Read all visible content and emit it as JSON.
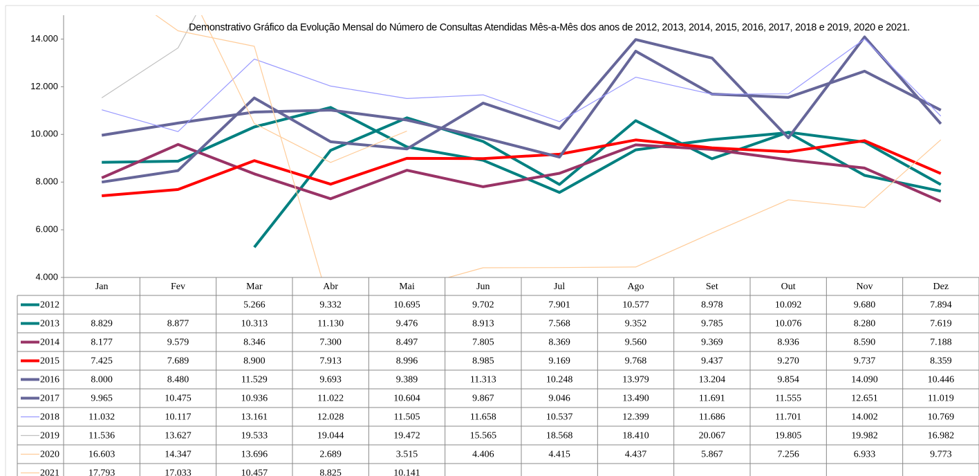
{
  "chart_data": {
    "type": "line",
    "title": "Demonstrativo Gráfico da Evolução Mensal do Número de Consultas Atendidas Mês-a-Mês dos anos de  2012, 2013, 2014, 2015, 2016, 2017, 2018 e 2019, 2020 e 2021.",
    "categories": [
      "Jan",
      "Fev",
      "Mar",
      "Abr",
      "Mai",
      "Jun",
      "Jul",
      "Ago",
      "Set",
      "Out",
      "Nov",
      "Dez"
    ],
    "ylim": [
      4000,
      15000
    ],
    "yticks": [
      {
        "value": 4000,
        "label": "4.000"
      },
      {
        "value": 6000,
        "label": "6.000"
      },
      {
        "value": 8000,
        "label": "8.000"
      },
      {
        "value": 10000,
        "label": "10.000"
      },
      {
        "value": 12000,
        "label": "12.000"
      },
      {
        "value": 14000,
        "label": "14.000"
      }
    ],
    "grid": false,
    "series": [
      {
        "name": "2012",
        "color": "#008080",
        "values": [
          null,
          null,
          5266,
          9332,
          10695,
          9702,
          7901,
          10577,
          8978,
          10092,
          9680,
          7894
        ],
        "value_labels": [
          null,
          null,
          "5.266",
          "9.332",
          "10.695",
          "9.702",
          "7.901",
          "10.577",
          "8.978",
          "10.092",
          "9.680",
          "7.894"
        ]
      },
      {
        "name": "2013",
        "color": "#008080",
        "values": [
          8829,
          8877,
          10313,
          11130,
          9476,
          8913,
          7568,
          9352,
          9785,
          10076,
          8280,
          7619
        ],
        "value_labels": [
          "8.829",
          "8.877",
          "10.313",
          "11.130",
          "9.476",
          "8.913",
          "7.568",
          "9.352",
          "9.785",
          "10.076",
          "8.280",
          "7.619"
        ]
      },
      {
        "name": "2014",
        "color": "#993366",
        "values": [
          8177,
          9579,
          8346,
          7300,
          8497,
          7805,
          8369,
          9560,
          9369,
          8936,
          8590,
          7188
        ],
        "value_labels": [
          "8.177",
          "9.579",
          "8.346",
          "7.300",
          "8.497",
          "7.805",
          "8.369",
          "9.560",
          "9.369",
          "8.936",
          "8.590",
          "7.188"
        ]
      },
      {
        "name": "2015",
        "color": "#ff0000",
        "values": [
          7425,
          7689,
          8900,
          7913,
          8996,
          8985,
          9169,
          9768,
          9437,
          9270,
          9737,
          8359
        ],
        "value_labels": [
          "7.425",
          "7.689",
          "8.900",
          "7.913",
          "8.996",
          "8.985",
          "9.169",
          "9.768",
          "9.437",
          "9.270",
          "9.737",
          "8.359"
        ]
      },
      {
        "name": "2016",
        "color": "#666699",
        "values": [
          8000,
          8480,
          11529,
          9693,
          9389,
          11313,
          10248,
          13979,
          13204,
          9854,
          14090,
          10446
        ],
        "value_labels": [
          "8.000",
          "8.480",
          "11.529",
          "9.693",
          "9.389",
          "11.313",
          "10.248",
          "13.979",
          "13.204",
          "9.854",
          "14.090",
          "10.446"
        ]
      },
      {
        "name": "2017",
        "color": "#666699",
        "values": [
          9965,
          10475,
          10936,
          11022,
          10604,
          9867,
          9046,
          13490,
          11691,
          11555,
          12651,
          11019
        ],
        "value_labels": [
          "9.965",
          "10.475",
          "10.936",
          "11.022",
          "10.604",
          "9.867",
          "9.046",
          "13.490",
          "11.691",
          "11.555",
          "12.651",
          "11.019"
        ]
      },
      {
        "name": "2018",
        "color": "#9999ff",
        "values": [
          11032,
          10117,
          13161,
          12028,
          11505,
          11658,
          10537,
          12399,
          11686,
          11701,
          14002,
          10769
        ],
        "value_labels": [
          "11.032",
          "10.117",
          "13.161",
          "12.028",
          "11.505",
          "11.658",
          "10.537",
          "12.399",
          "11.686",
          "11.701",
          "14.002",
          "10.769"
        ]
      },
      {
        "name": "2019",
        "color": "#c0c0c0",
        "values": [
          11536,
          13627,
          19533,
          19044,
          19472,
          15565,
          18568,
          18410,
          20067,
          19805,
          19982,
          16982
        ],
        "value_labels": [
          "11.536",
          "13.627",
          "19.533",
          "19.044",
          "19.472",
          "15.565",
          "18.568",
          "18.410",
          "20.067",
          "19.805",
          "19.982",
          "16.982"
        ]
      },
      {
        "name": "2020",
        "color": "#ffcc99",
        "values": [
          16603,
          14347,
          13696,
          2689,
          3515,
          4406,
          4415,
          4437,
          5867,
          7256,
          6933,
          9773
        ],
        "value_labels": [
          "16.603",
          "14.347",
          "13.696",
          "2.689",
          "3.515",
          "4.406",
          "4.415",
          "4.437",
          "5.867",
          "7.256",
          "6.933",
          "9.773"
        ]
      },
      {
        "name": "2021",
        "color": "#ffcc99",
        "values": [
          17793,
          17033,
          10457,
          8825,
          10141,
          null,
          null,
          null,
          null,
          null,
          null,
          null
        ],
        "value_labels": [
          "17.793",
          "17.033",
          "10.457",
          "8.825",
          "10.141",
          null,
          null,
          null,
          null,
          null,
          null,
          null
        ]
      }
    ]
  }
}
